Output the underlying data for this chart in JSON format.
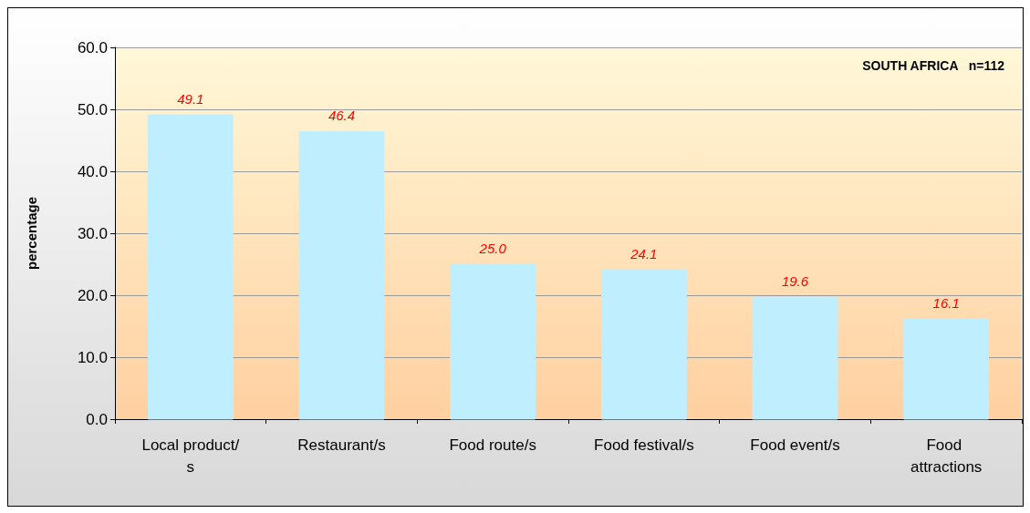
{
  "chart_data": {
    "type": "bar",
    "title": "SOUTH AFRICA   n=112",
    "ylabel": "percentage",
    "categories": [
      "Local product/s",
      "Restaurant/s",
      "Food route/s",
      "Food festival/s",
      "Food event/s",
      "Food attractions"
    ],
    "values": [
      49.1,
      46.4,
      25.0,
      24.1,
      19.6,
      16.1
    ],
    "value_labels": [
      "49.1",
      "46.4",
      "25.0",
      "24.1",
      "19.6",
      "16.1"
    ],
    "color": "#bfefff",
    "ylim": [
      0,
      60
    ],
    "yticks": [
      {
        "value": 0,
        "label": "0.0"
      },
      {
        "value": 10,
        "label": "10.0"
      },
      {
        "value": 20,
        "label": "20.0"
      },
      {
        "value": 30,
        "label": "30.0"
      },
      {
        "value": 40,
        "label": "40.0"
      },
      {
        "value": 50,
        "label": "50.0"
      },
      {
        "value": 60,
        "label": "60.0"
      }
    ],
    "grid": "y"
  }
}
